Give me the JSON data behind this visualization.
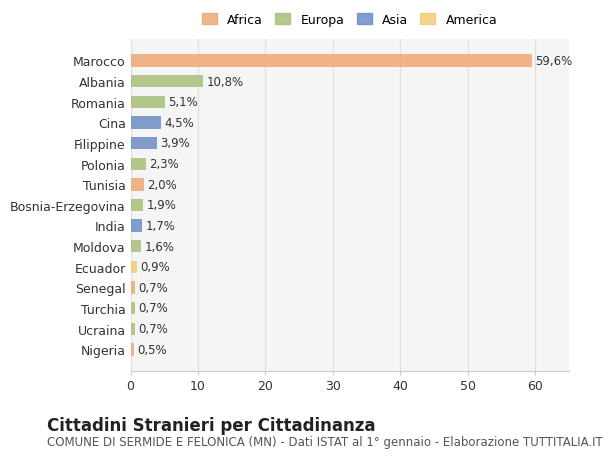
{
  "countries": [
    "Marocco",
    "Albania",
    "Romania",
    "Cina",
    "Filippine",
    "Polonia",
    "Tunisia",
    "Bosnia-Erzegovina",
    "India",
    "Moldova",
    "Ecuador",
    "Senegal",
    "Turchia",
    "Ucraina",
    "Nigeria"
  ],
  "values": [
    59.6,
    10.8,
    5.1,
    4.5,
    3.9,
    2.3,
    2.0,
    1.9,
    1.7,
    1.6,
    0.9,
    0.7,
    0.7,
    0.7,
    0.5
  ],
  "labels": [
    "59,6%",
    "10,8%",
    "5,1%",
    "4,5%",
    "3,9%",
    "2,3%",
    "2,0%",
    "1,9%",
    "1,7%",
    "1,6%",
    "0,9%",
    "0,7%",
    "0,7%",
    "0,7%",
    "0,5%"
  ],
  "continents": [
    "Africa",
    "Europa",
    "Europa",
    "Asia",
    "Asia",
    "Europa",
    "Africa",
    "Europa",
    "Asia",
    "Europa",
    "America",
    "Africa",
    "Europa",
    "Europa",
    "Africa"
  ],
  "continent_colors": {
    "Africa": "#F0A875",
    "Europa": "#A8BF7A",
    "Asia": "#6B8DC4",
    "America": "#F0CC75"
  },
  "legend_entries": [
    "Africa",
    "Europa",
    "Asia",
    "America"
  ],
  "legend_colors": [
    "#F0A875",
    "#A8BF7A",
    "#6B8DC4",
    "#F0CC75"
  ],
  "title": "Cittadini Stranieri per Cittadinanza",
  "subtitle": "COMUNE DI SERMIDE E FELONICA (MN) - Dati ISTAT al 1° gennaio - Elaborazione TUTTITALIA.IT",
  "xlim": [
    0,
    65
  ],
  "xticks": [
    0,
    10,
    20,
    30,
    40,
    50,
    60
  ],
  "background_color": "#ffffff",
  "grid_color": "#e0e0e0",
  "bar_height": 0.6,
  "title_fontsize": 12,
  "subtitle_fontsize": 8.5,
  "label_fontsize": 8.5,
  "tick_fontsize": 9,
  "legend_fontsize": 9
}
